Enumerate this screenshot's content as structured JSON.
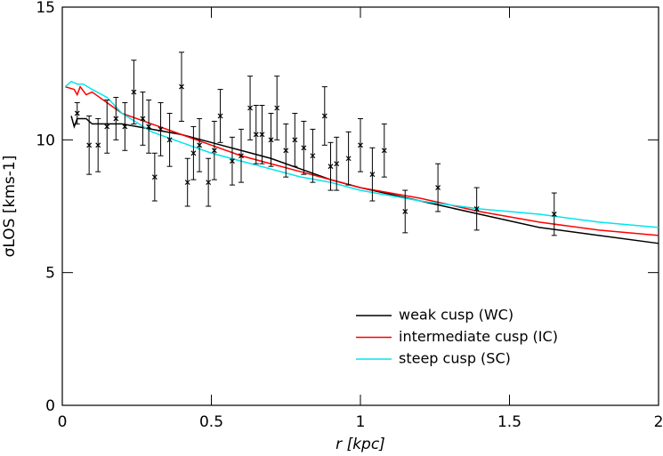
{
  "chart_data": {
    "type": "line",
    "xlabel": "r [kpc]",
    "ylabel": "σLOS [kms-1]",
    "xlim": [
      0,
      2
    ],
    "ylim": [
      0,
      15
    ],
    "xticks": [
      0,
      0.5,
      1,
      1.5,
      2
    ],
    "yticks": [
      0,
      5,
      10,
      15
    ],
    "legend": "lower right",
    "series": [
      {
        "name": "weak cusp (WC)",
        "color": "#000000",
        "x": [
          0.03,
          0.04,
          0.05,
          0.08,
          0.1,
          0.15,
          0.2,
          0.3,
          0.4,
          0.5,
          0.6,
          0.7,
          0.8,
          0.9,
          1.0,
          1.2,
          1.4,
          1.6,
          1.8,
          2.0
        ],
        "values": [
          10.9,
          10.5,
          10.8,
          10.8,
          10.6,
          10.6,
          10.6,
          10.4,
          10.2,
          9.9,
          9.6,
          9.3,
          8.9,
          8.5,
          8.2,
          7.7,
          7.2,
          6.7,
          6.4,
          6.1
        ]
      },
      {
        "name": "intermediate cusp (IC)",
        "color": "#ff0000",
        "x": [
          0.01,
          0.04,
          0.05,
          0.06,
          0.08,
          0.1,
          0.15,
          0.2,
          0.3,
          0.4,
          0.5,
          0.6,
          0.7,
          0.8,
          0.9,
          1.0,
          1.2,
          1.4,
          1.6,
          1.8,
          2.0
        ],
        "values": [
          12.0,
          11.9,
          11.7,
          12.0,
          11.7,
          11.8,
          11.4,
          11.0,
          10.6,
          10.2,
          9.8,
          9.4,
          9.1,
          8.8,
          8.5,
          8.2,
          7.8,
          7.3,
          6.9,
          6.6,
          6.4
        ]
      },
      {
        "name": "steep cusp (SC)",
        "color": "#00e5ee",
        "x": [
          0.01,
          0.03,
          0.05,
          0.07,
          0.1,
          0.15,
          0.2,
          0.3,
          0.4,
          0.5,
          0.6,
          0.7,
          0.8,
          0.9,
          1.0,
          1.2,
          1.4,
          1.6,
          1.8,
          2.0
        ],
        "values": [
          12.0,
          12.2,
          12.1,
          12.1,
          11.9,
          11.6,
          11.0,
          10.3,
          9.9,
          9.5,
          9.2,
          8.9,
          8.6,
          8.4,
          8.1,
          7.7,
          7.4,
          7.2,
          6.9,
          6.7
        ]
      }
    ],
    "data_points": {
      "x": [
        0.05,
        0.09,
        0.12,
        0.15,
        0.18,
        0.21,
        0.24,
        0.27,
        0.29,
        0.31,
        0.33,
        0.36,
        0.4,
        0.42,
        0.44,
        0.46,
        0.49,
        0.51,
        0.53,
        0.57,
        0.6,
        0.63,
        0.65,
        0.67,
        0.7,
        0.72,
        0.75,
        0.78,
        0.81,
        0.84,
        0.88,
        0.9,
        0.92,
        0.96,
        1.0,
        1.04,
        1.08,
        1.15,
        1.26,
        1.39,
        1.65
      ],
      "values": [
        11.0,
        9.8,
        9.8,
        10.5,
        10.8,
        10.5,
        11.8,
        10.8,
        10.5,
        8.6,
        10.4,
        10.0,
        12.0,
        8.4,
        9.5,
        9.8,
        8.4,
        9.6,
        10.9,
        9.2,
        9.4,
        11.2,
        10.2,
        10.2,
        10.0,
        11.2,
        9.6,
        10.0,
        9.7,
        9.4,
        10.9,
        9.0,
        9.1,
        9.3,
        9.8,
        8.7,
        9.6,
        7.3,
        8.2,
        7.4,
        7.2
      ],
      "errors": [
        0.4,
        1.1,
        1.0,
        1.0,
        0.8,
        0.9,
        1.2,
        1.0,
        1.0,
        0.9,
        1.0,
        1.0,
        1.3,
        0.9,
        1.0,
        1.0,
        0.9,
        1.1,
        1.0,
        0.9,
        1.0,
        1.2,
        1.1,
        1.1,
        1.0,
        1.2,
        1.0,
        1.0,
        1.0,
        1.0,
        1.1,
        0.9,
        1.0,
        1.0,
        1.0,
        1.0,
        1.0,
        0.8,
        0.9,
        0.8,
        0.8
      ]
    }
  }
}
